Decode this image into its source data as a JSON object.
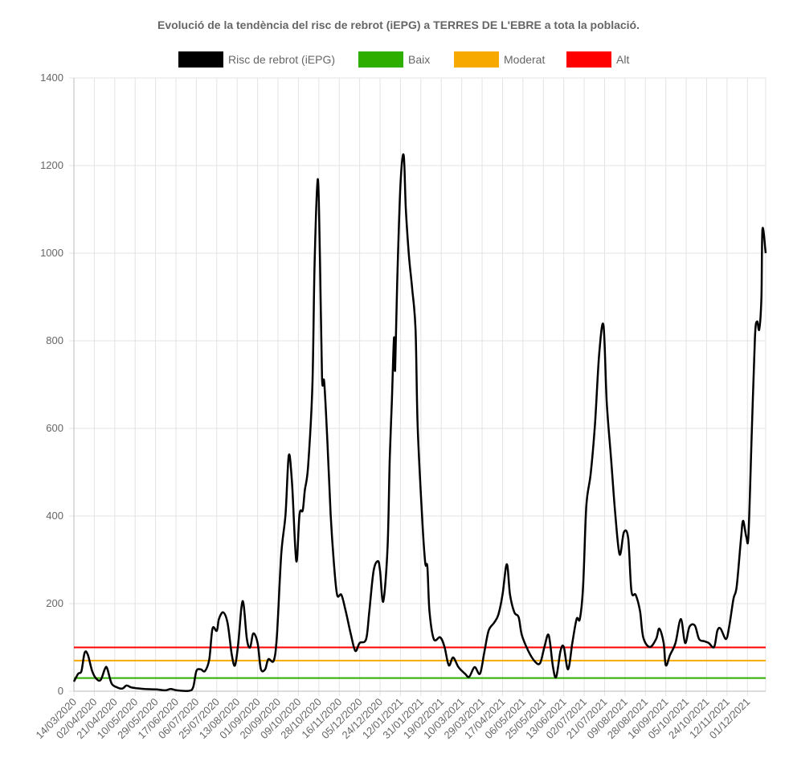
{
  "chart_data": {
    "type": "line",
    "title": "Evolució de la tendència del risc de rebrot (iEPG) a TERRES DE L'EBRE a tota la població.",
    "xlabel": "",
    "ylabel": "",
    "ylim": [
      0,
      1400
    ],
    "yticks": [
      0,
      200,
      400,
      600,
      800,
      1000,
      1200,
      1400
    ],
    "x_tick_step_days": 19,
    "x_range_days": [
      0,
      644
    ],
    "xticks": [
      "14/03/2020",
      "02/04/2020",
      "21/04/2020",
      "10/05/2020",
      "29/05/2020",
      "17/06/2020",
      "06/07/2020",
      "25/07/2020",
      "13/08/2020",
      "01/09/2020",
      "20/09/2020",
      "09/10/2020",
      "28/10/2020",
      "16/11/2020",
      "05/12/2020",
      "24/12/2020",
      "12/01/2021",
      "31/01/2021",
      "19/02/2021",
      "10/03/2021",
      "29/03/2021",
      "17/04/2021",
      "06/05/2021",
      "25/05/2021",
      "13/06/2021",
      "02/07/2021",
      "21/07/2021",
      "09/08/2021",
      "28/08/2021",
      "16/09/2021",
      "05/10/2021",
      "24/10/2021",
      "12/11/2021",
      "01/12/2021"
    ],
    "grid": true,
    "legend_position": "top",
    "legend": [
      {
        "label": "Risc de rebrot (iEPG)",
        "color": "#000000"
      },
      {
        "label": "Baix",
        "color": "#2eaf00"
      },
      {
        "label": "Moderat",
        "color": "#f7a900"
      },
      {
        "label": "Alt",
        "color": "#ff0000"
      }
    ],
    "thresholds": [
      {
        "name": "Baix",
        "value": 30,
        "color": "#2eaf00"
      },
      {
        "name": "Moderat",
        "value": 70,
        "color": "#f7a900"
      },
      {
        "name": "Alt",
        "value": 100,
        "color": "#ff0000"
      }
    ],
    "series": [
      {
        "name": "Risc de rebrot (iEPG)",
        "color": "#000000",
        "x_unit": "days since 14/03/2020",
        "points": [
          [
            0,
            22
          ],
          [
            4,
            40
          ],
          [
            7,
            46
          ],
          [
            10,
            88
          ],
          [
            13,
            83
          ],
          [
            17,
            46
          ],
          [
            21,
            28
          ],
          [
            25,
            26
          ],
          [
            29,
            52
          ],
          [
            31,
            52
          ],
          [
            35,
            18
          ],
          [
            40,
            9
          ],
          [
            45,
            6
          ],
          [
            49,
            13
          ],
          [
            53,
            9
          ],
          [
            58,
            7
          ],
          [
            66,
            5
          ],
          [
            77,
            4
          ],
          [
            85,
            2
          ],
          [
            90,
            5
          ],
          [
            96,
            2
          ],
          [
            107,
            1
          ],
          [
            111,
            9
          ],
          [
            114,
            46
          ],
          [
            118,
            50
          ],
          [
            122,
            46
          ],
          [
            126,
            73
          ],
          [
            129,
            143
          ],
          [
            133,
            138
          ],
          [
            135,
            165
          ],
          [
            139,
            180
          ],
          [
            143,
            156
          ],
          [
            147,
            83
          ],
          [
            150,
            59
          ],
          [
            153,
            110
          ],
          [
            156,
            193
          ],
          [
            158,
            198
          ],
          [
            161,
            119
          ],
          [
            164,
            100
          ],
          [
            167,
            132
          ],
          [
            171,
            110
          ],
          [
            174,
            51
          ],
          [
            178,
            50
          ],
          [
            181,
            73
          ],
          [
            186,
            70
          ],
          [
            189,
            128
          ],
          [
            193,
            312
          ],
          [
            197,
            404
          ],
          [
            200,
            538
          ],
          [
            203,
            477
          ],
          [
            207,
            297
          ],
          [
            210,
            404
          ],
          [
            213,
            413
          ],
          [
            215,
            459
          ],
          [
            218,
            514
          ],
          [
            222,
            697
          ],
          [
            224,
            972
          ],
          [
            227,
            1169
          ],
          [
            229,
            991
          ],
          [
            231,
            716
          ],
          [
            233,
            706
          ],
          [
            236,
            569
          ],
          [
            239,
            404
          ],
          [
            242,
            294
          ],
          [
            245,
            220
          ],
          [
            249,
            220
          ],
          [
            253,
            183
          ],
          [
            258,
            128
          ],
          [
            262,
            92
          ],
          [
            266,
            110
          ],
          [
            272,
            119
          ],
          [
            275,
            183
          ],
          [
            279,
            275
          ],
          [
            283,
            297
          ],
          [
            285,
            275
          ],
          [
            288,
            205
          ],
          [
            292,
            330
          ],
          [
            294,
            532
          ],
          [
            296,
            661
          ],
          [
            298,
            807
          ],
          [
            299,
            734
          ],
          [
            301,
            936
          ],
          [
            304,
            1156
          ],
          [
            307,
            1224
          ],
          [
            309,
            1101
          ],
          [
            312,
            991
          ],
          [
            315,
            917
          ],
          [
            318,
            826
          ],
          [
            320,
            606
          ],
          [
            324,
            404
          ],
          [
            327,
            294
          ],
          [
            329,
            284
          ],
          [
            331,
            183
          ],
          [
            335,
            119
          ],
          [
            341,
            123
          ],
          [
            345,
            101
          ],
          [
            349,
            59
          ],
          [
            353,
            77
          ],
          [
            358,
            55
          ],
          [
            364,
            40
          ],
          [
            368,
            33
          ],
          [
            373,
            55
          ],
          [
            378,
            40
          ],
          [
            382,
            88
          ],
          [
            386,
            138
          ],
          [
            391,
            156
          ],
          [
            395,
            174
          ],
          [
            399,
            220
          ],
          [
            403,
            290
          ],
          [
            406,
            220
          ],
          [
            410,
            180
          ],
          [
            414,
            169
          ],
          [
            417,
            128
          ],
          [
            423,
            92
          ],
          [
            429,
            68
          ],
          [
            434,
            64
          ],
          [
            438,
            101
          ],
          [
            442,
            128
          ],
          [
            446,
            55
          ],
          [
            449,
            33
          ],
          [
            453,
            92
          ],
          [
            456,
            101
          ],
          [
            460,
            50
          ],
          [
            464,
            110
          ],
          [
            468,
            165
          ],
          [
            471,
            165
          ],
          [
            474,
            239
          ],
          [
            477,
            422
          ],
          [
            481,
            495
          ],
          [
            485,
            606
          ],
          [
            489,
            771
          ],
          [
            493,
            835
          ],
          [
            496,
            661
          ],
          [
            500,
            532
          ],
          [
            504,
            404
          ],
          [
            508,
            312
          ],
          [
            512,
            363
          ],
          [
            516,
            349
          ],
          [
            519,
            229
          ],
          [
            523,
            220
          ],
          [
            527,
            183
          ],
          [
            530,
            123
          ],
          [
            536,
            101
          ],
          [
            542,
            119
          ],
          [
            545,
            143
          ],
          [
            549,
            110
          ],
          [
            551,
            59
          ],
          [
            555,
            83
          ],
          [
            560,
            110
          ],
          [
            565,
            165
          ],
          [
            569,
            110
          ],
          [
            573,
            147
          ],
          [
            578,
            150
          ],
          [
            582,
            119
          ],
          [
            587,
            114
          ],
          [
            591,
            110
          ],
          [
            596,
            101
          ],
          [
            599,
            138
          ],
          [
            602,
            143
          ],
          [
            607,
            119
          ],
          [
            610,
            147
          ],
          [
            614,
            211
          ],
          [
            617,
            239
          ],
          [
            621,
            349
          ],
          [
            623,
            389
          ],
          [
            626,
            352
          ],
          [
            628,
            358
          ],
          [
            631,
            587
          ],
          [
            634,
            807
          ],
          [
            636,
            844
          ],
          [
            638,
            826
          ],
          [
            640,
            899
          ],
          [
            641,
            1055
          ],
          [
            644,
            1000
          ]
        ]
      }
    ]
  }
}
